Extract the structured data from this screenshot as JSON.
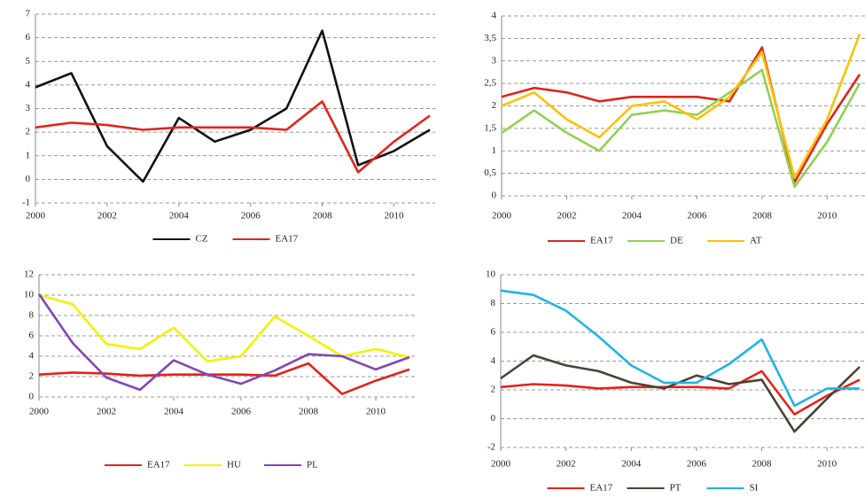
{
  "chart_data": [
    {
      "type": "line",
      "x": [
        2000,
        2001,
        2002,
        2003,
        2004,
        2005,
        2006,
        2007,
        2008,
        2009,
        2010,
        2011
      ],
      "xlim": [
        2000,
        2011
      ],
      "xticks": [
        2000,
        2002,
        2004,
        2006,
        2008,
        2010
      ],
      "ylim": [
        -1,
        7
      ],
      "yticks": [
        -1,
        0,
        1,
        2,
        3,
        4,
        5,
        6,
        7
      ],
      "grid": true,
      "series": [
        {
          "name": "CZ",
          "color": "#111111",
          "values": [
            3.9,
            4.5,
            1.4,
            -0.1,
            2.6,
            1.6,
            2.1,
            3.0,
            6.3,
            0.6,
            1.2,
            2.1
          ]
        },
        {
          "name": "EA17",
          "color": "#e3231b",
          "values": [
            2.2,
            2.4,
            2.3,
            2.1,
            2.2,
            2.2,
            2.2,
            2.1,
            3.3,
            0.3,
            1.6,
            2.7
          ]
        }
      ]
    },
    {
      "type": "line",
      "x": [
        2000,
        2001,
        2002,
        2003,
        2004,
        2005,
        2006,
        2007,
        2008,
        2009,
        2010,
        2011
      ],
      "xlim": [
        2000,
        2011
      ],
      "xticks": [
        2000,
        2002,
        2004,
        2006,
        2008,
        2010
      ],
      "ylim": [
        0,
        4
      ],
      "yticks": [
        0,
        {
          "value": 0.5,
          "label": "0,5"
        },
        1,
        {
          "value": 1.5,
          "label": "1,5"
        },
        2,
        {
          "value": 2.5,
          "label": "2,5"
        },
        3,
        {
          "value": 3.5,
          "label": "3,5"
        },
        4
      ],
      "grid": true,
      "series": [
        {
          "name": "EA17",
          "color": "#d9281c",
          "values": [
            2.2,
            2.4,
            2.3,
            2.1,
            2.2,
            2.2,
            2.2,
            2.1,
            3.3,
            0.3,
            1.6,
            2.7
          ]
        },
        {
          "name": "DE",
          "color": "#92d050",
          "values": [
            1.4,
            1.9,
            1.4,
            1.0,
            1.8,
            1.9,
            1.8,
            2.3,
            2.8,
            0.2,
            1.2,
            2.5
          ]
        },
        {
          "name": "AT",
          "color": "#ffc000",
          "values": [
            2.0,
            2.3,
            1.7,
            1.3,
            2.0,
            2.1,
            1.7,
            2.2,
            3.2,
            0.4,
            1.7,
            3.6
          ]
        }
      ]
    },
    {
      "type": "line",
      "x": [
        2000,
        2001,
        2002,
        2003,
        2004,
        2005,
        2006,
        2007,
        2008,
        2009,
        2010,
        2011
      ],
      "xlim": [
        2000,
        2011
      ],
      "xticks": [
        2000,
        2002,
        2004,
        2006,
        2008,
        2010
      ],
      "ylim": [
        0,
        12
      ],
      "yticks": [
        0,
        2,
        4,
        6,
        8,
        10,
        12
      ],
      "grid": true,
      "series": [
        {
          "name": "EA17",
          "color": "#e3231b",
          "values": [
            2.2,
            2.4,
            2.3,
            2.1,
            2.2,
            2.2,
            2.2,
            2.1,
            3.3,
            0.3,
            1.6,
            2.7
          ]
        },
        {
          "name": "HU",
          "color": "#f2f200",
          "values": [
            10.0,
            9.1,
            5.2,
            4.7,
            6.8,
            3.5,
            4.0,
            7.9,
            6.0,
            4.0,
            4.7,
            3.9
          ]
        },
        {
          "name": "PL",
          "color": "#8445b8",
          "values": [
            10.1,
            5.3,
            1.9,
            0.7,
            3.6,
            2.2,
            1.3,
            2.6,
            4.2,
            4.0,
            2.7,
            3.9
          ]
        }
      ]
    },
    {
      "type": "line",
      "x": [
        2000,
        2001,
        2002,
        2003,
        2004,
        2005,
        2006,
        2007,
        2008,
        2009,
        2010,
        2011
      ],
      "xlim": [
        2000,
        2011
      ],
      "xticks": [
        2000,
        2002,
        2004,
        2006,
        2008,
        2010
      ],
      "ylim": [
        -2,
        10
      ],
      "yticks": [
        -2,
        0,
        2,
        4,
        6,
        8,
        10
      ],
      "grid": true,
      "series": [
        {
          "name": "EA17",
          "color": "#e3231b",
          "values": [
            2.2,
            2.4,
            2.3,
            2.1,
            2.2,
            2.2,
            2.2,
            2.1,
            3.3,
            0.3,
            1.6,
            2.7
          ]
        },
        {
          "name": "PT",
          "color": "#4a4234",
          "values": [
            2.8,
            4.4,
            3.7,
            3.3,
            2.5,
            2.1,
            3.0,
            2.4,
            2.7,
            -0.9,
            1.4,
            3.6
          ]
        },
        {
          "name": "SI",
          "color": "#1fb4e6",
          "values": [
            8.9,
            8.6,
            7.5,
            5.7,
            3.7,
            2.5,
            2.5,
            3.8,
            5.5,
            0.9,
            2.1,
            2.1
          ]
        }
      ]
    }
  ]
}
